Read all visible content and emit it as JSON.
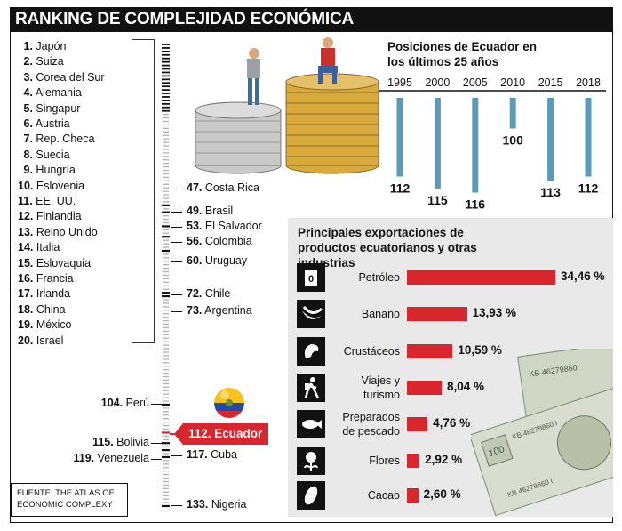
{
  "header": {
    "title": "RANKING DE COMPLEJIDAD ECONÓMICA"
  },
  "top20": [
    {
      "rank": "1.",
      "country": "Japón"
    },
    {
      "rank": "2.",
      "country": "Suiza"
    },
    {
      "rank": "3.",
      "country": "Corea del Sur"
    },
    {
      "rank": "4.",
      "country": "Alemania"
    },
    {
      "rank": "5.",
      "country": "Singapur"
    },
    {
      "rank": "6.",
      "country": "Austria"
    },
    {
      "rank": "7.",
      "country": "Rep. Checa"
    },
    {
      "rank": "8.",
      "country": "Suecia"
    },
    {
      "rank": "9.",
      "country": "Hungría"
    },
    {
      "rank": "10.",
      "country": "Eslovenia"
    },
    {
      "rank": "11.",
      "country": "EE. UU."
    },
    {
      "rank": "12.",
      "country": "Finlandia"
    },
    {
      "rank": "13.",
      "country": "Reino Unido"
    },
    {
      "rank": "14.",
      "country": "Italia"
    },
    {
      "rank": "15.",
      "country": "Eslovaquia"
    },
    {
      "rank": "16.",
      "country": "Francia"
    },
    {
      "rank": "17.",
      "country": "Irlanda"
    },
    {
      "rank": "18.",
      "country": "China"
    },
    {
      "rank": "19.",
      "country": "México"
    },
    {
      "rank": "20.",
      "country": "Israel"
    }
  ],
  "latam": [
    {
      "rank": "47.",
      "country": "Costa Rica"
    },
    {
      "rank": "49.",
      "country": "Brasil"
    },
    {
      "rank": "53.",
      "country": "El Salvador"
    },
    {
      "rank": "56.",
      "country": "Colombia"
    },
    {
      "rank": "60.",
      "country": "Uruguay"
    },
    {
      "rank": "72.",
      "country": "Chile"
    },
    {
      "rank": "73.",
      "country": "Argentina"
    },
    {
      "rank": "117.",
      "country": "Cuba"
    },
    {
      "rank": "133.",
      "country": "Nigeria"
    }
  ],
  "left_ranks": [
    {
      "rank": "104.",
      "country": "Perú"
    },
    {
      "rank": "115.",
      "country": "Bolivia"
    },
    {
      "rank": "119.",
      "country": "Venezuela"
    }
  ],
  "ecuador": {
    "label": "112. Ecuador"
  },
  "source": {
    "line1": "FUENTE: THE ATLAS OF",
    "line2": "ECONOMIC COMPLEXY"
  },
  "colors": {
    "accent": "#d7262d",
    "bar_blue": "#5b9bb8",
    "panel": "#e9e9e9",
    "dark": "#111111"
  },
  "chart_data": [
    {
      "type": "bar",
      "title": "Posiciones de Ecuador en los últimos 25 años",
      "categories": [
        "1995",
        "2000",
        "2005",
        "2010",
        "2015",
        "2018"
      ],
      "values": [
        112,
        115,
        116,
        100,
        113,
        112
      ],
      "value_labels": [
        "112",
        "115",
        "116",
        "100",
        "113",
        "112"
      ]
    },
    {
      "type": "bar",
      "title": "Principales exportaciones de productos ecuatorianos y otras industrias",
      "categories": [
        "Petróleo",
        "Banano",
        "Crustáceos",
        "Viajes y turismo",
        "Preparados de pescado",
        "Flores",
        "Cacao"
      ],
      "category_lines": [
        [
          "Petróleo"
        ],
        [
          "Banano"
        ],
        [
          "Crustáceos"
        ],
        [
          "Viajes y",
          "turismo"
        ],
        [
          "Preparados",
          "de pescado"
        ],
        [
          "Flores"
        ],
        [
          "Cacao"
        ]
      ],
      "values": [
        34.46,
        13.93,
        10.59,
        8.04,
        4.76,
        2.92,
        2.6
      ],
      "value_labels": [
        "34,46 %",
        "13,93 %",
        "10,59 %",
        "8,04 %",
        "4,76 %",
        "2,92 %",
        "2,60 %"
      ],
      "icons": [
        "oil-barrel-icon",
        "banana-icon",
        "shrimp-icon",
        "hiker-icon",
        "fish-icon",
        "flower-icon",
        "cacao-icon"
      ]
    }
  ]
}
